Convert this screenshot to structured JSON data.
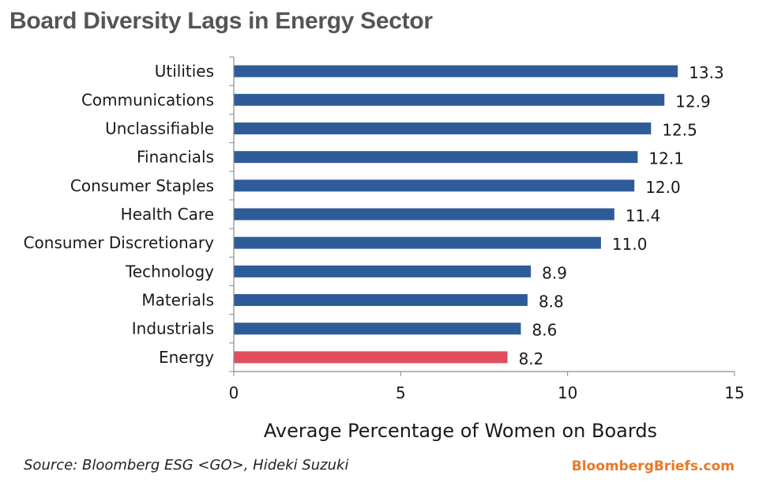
{
  "title": "Board Diversity Lags in Energy Sector",
  "source": "Source: Bloomberg ESG <GO>, Hideki Suzuki",
  "brand": "BloombergBriefs.com",
  "colors": {
    "bar": "#2E5C9A",
    "highlight": "#E04E5E",
    "brand": "#E8782A",
    "axis": "#8c8c8c",
    "title": "#555555"
  },
  "chart_data": {
    "type": "bar",
    "orientation": "horizontal",
    "title": "Board Diversity Lags in Energy Sector",
    "xlabel": "Average Percentage of Women on Boards",
    "ylabel": "",
    "xlim": [
      0,
      15
    ],
    "xticks": [
      0,
      5,
      10,
      15
    ],
    "grid": false,
    "legend": "none",
    "categories": [
      "Utilities",
      "Communications",
      "Unclassifiable",
      "Financials",
      "Consumer Staples",
      "Health Care",
      "Consumer Discretionary",
      "Technology",
      "Materials",
      "Industrials",
      "Energy"
    ],
    "values": [
      13.3,
      12.9,
      12.5,
      12.1,
      12.0,
      11.4,
      11.0,
      8.9,
      8.8,
      8.6,
      8.2
    ],
    "value_labels": [
      "13.3",
      "12.9",
      "12.5",
      "12.1",
      "12.0",
      "11.4",
      "11.0",
      "8.9",
      "8.8",
      "8.6",
      "8.2"
    ],
    "highlight": "Energy"
  }
}
